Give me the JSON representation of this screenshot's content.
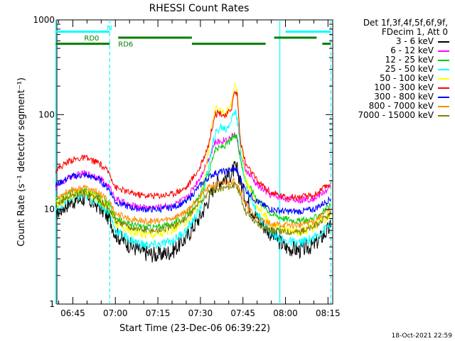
{
  "chart_data": {
    "type": "line",
    "title": "RHESSI Count Rates",
    "xlabel": "Start Time (23-Dec-06 06:39:22)",
    "ylabel": "Count Rate (s⁻¹ detector segment⁻¹)",
    "yscale": "log",
    "ylim": [
      1,
      1000
    ],
    "xlim": [
      "06:39:22",
      "08:16:40"
    ],
    "x_ticks": [
      "06:45",
      "07:00",
      "07:15",
      "07:30",
      "07:45",
      "08:00",
      "08:15"
    ],
    "y_ticks": [
      "1",
      "10",
      "100",
      "1000"
    ],
    "legend_header": [
      "Det 1f,3f,4f,5f,6f,9f,",
      "FDecim 1, Att 0"
    ],
    "legend_position": "right",
    "x": [
      "06:39",
      "06:44",
      "06:49",
      "06:54",
      "06:58",
      "07:00",
      "07:05",
      "07:10",
      "07:15",
      "07:20",
      "07:25",
      "07:30",
      "07:33",
      "07:35",
      "07:37",
      "07:39",
      "07:41",
      "07:42",
      "07:43",
      "07:44",
      "07:46",
      "07:50",
      "07:55",
      "08:00",
      "08:05",
      "08:10",
      "08:16"
    ],
    "series": [
      {
        "name": "3 - 6 keV",
        "color": "#000000",
        "values": [
          9,
          12,
          13,
          11,
          8,
          5.5,
          4.2,
          3.5,
          3.3,
          3.6,
          5,
          8.5,
          13,
          18,
          20,
          22,
          24,
          27,
          26,
          20,
          13,
          8,
          5.5,
          4,
          3.7,
          4.2,
          6.5
        ]
      },
      {
        "name": "6 - 12 keV",
        "color": "#ff00ff",
        "values": [
          17,
          22,
          24,
          22,
          17,
          13,
          11,
          10.5,
          10.5,
          11,
          13,
          22,
          35,
          50,
          52,
          55,
          58,
          62,
          55,
          38,
          26,
          18,
          14,
          13,
          12.5,
          13,
          17
        ]
      },
      {
        "name": "12 - 25 keV",
        "color": "#00cc00",
        "values": [
          12,
          15,
          16,
          14,
          11,
          8,
          7,
          6.5,
          6.5,
          7,
          8.5,
          14,
          25,
          42,
          45,
          48,
          55,
          60,
          55,
          35,
          20,
          13,
          9,
          8,
          7.5,
          8,
          11
        ]
      },
      {
        "name": "25 - 50 keV",
        "color": "#00ffff",
        "values": [
          10,
          13,
          14,
          12,
          9,
          6,
          4.8,
          4.2,
          4.2,
          4.6,
          6,
          10,
          30,
          60,
          75,
          70,
          90,
          110,
          95,
          45,
          18,
          9,
          5.5,
          4.6,
          4.4,
          5,
          7
        ]
      },
      {
        "name": "50 - 100 keV",
        "color": "#ffff00",
        "values": [
          11,
          14,
          15,
          13,
          10,
          7,
          6,
          5.5,
          5.5,
          6,
          7.5,
          12,
          45,
          110,
          115,
          100,
          130,
          200,
          180,
          60,
          20,
          11,
          7,
          6,
          5.8,
          6.5,
          9
        ]
      },
      {
        "name": "100 - 300 keV",
        "color": "#ff0000",
        "values": [
          26,
          33,
          35,
          31,
          24,
          17,
          15,
          14,
          14,
          14.5,
          17,
          28,
          50,
          100,
          105,
          95,
          120,
          175,
          165,
          55,
          30,
          20,
          15,
          13.5,
          13.5,
          14,
          19
        ]
      },
      {
        "name": "300 - 800 keV",
        "color": "#0000ff",
        "values": [
          18,
          22,
          23,
          21,
          16,
          12,
          10.5,
          10,
          10,
          10.5,
          12,
          18,
          22,
          24,
          25,
          25,
          26,
          27,
          25,
          21,
          16,
          12,
          10,
          9.5,
          9.5,
          10,
          13
        ]
      },
      {
        "name": "800 - 7000 keV",
        "color": "#ff8c00",
        "values": [
          13,
          16,
          17,
          15,
          12,
          9,
          8,
          7.5,
          7.5,
          8,
          9.5,
          14,
          17,
          18,
          18.5,
          19,
          19.5,
          20,
          19,
          16,
          11,
          8,
          7,
          6.8,
          6.8,
          7.5,
          10
        ]
      },
      {
        "name": "7000 - 15000 keV",
        "color": "#808000",
        "values": [
          11,
          14,
          15,
          13,
          10,
          7.5,
          6.5,
          6,
          6,
          6.5,
          8,
          12,
          15,
          16,
          16.5,
          17,
          17.5,
          18,
          17,
          14,
          9.5,
          7,
          6,
          5.8,
          5.8,
          6.5,
          9
        ]
      }
    ],
    "annotations": {
      "bars": [
        {
          "label": "N",
          "color": "#00ffff",
          "y": 750,
          "segments": [
            [
              "06:39",
              "06:58"
            ],
            [
              "08:00",
              "08:16"
            ]
          ]
        },
        {
          "label": "RD0",
          "color": "#008000",
          "y": 650,
          "segments": [
            [
              "07:01",
              "07:27"
            ],
            [
              "07:56",
              "08:11"
            ]
          ]
        },
        {
          "label": "RD6",
          "color": "#008000",
          "y": 560,
          "segments": [
            [
              "06:39",
              "06:58"
            ],
            [
              "07:27",
              "07:53"
            ],
            [
              "08:13",
              "08:16"
            ]
          ]
        }
      ],
      "vlines": [
        {
          "x": "06:39",
          "color": "#00ffff",
          "style": "solid"
        },
        {
          "x": "06:58",
          "color": "#00ffff",
          "style": "dashed"
        },
        {
          "x": "07:58",
          "color": "#00ffff",
          "style": "solid"
        },
        {
          "x": "08:16",
          "color": "#00ffff",
          "style": "dashed"
        }
      ]
    }
  },
  "timestamp": "18-Oct-2021 22:59"
}
